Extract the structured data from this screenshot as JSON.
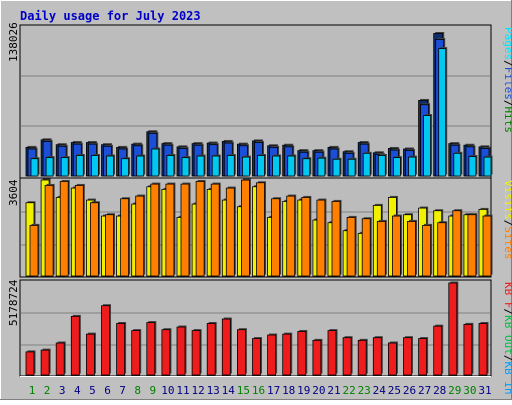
{
  "title": "Daily usage for July 2023",
  "colors": {
    "title": "#0000c8",
    "frame_bg": "#c0c0c0",
    "panel_bg": "#bcbcbc",
    "hits_front": "#008000",
    "hits_edge": "#0c2f6b",
    "hits": "#1c4fd8",
    "files": "#00c8f0",
    "pages": "#00e5ff",
    "visits": "#f0f000",
    "sites": "#ff8000",
    "kbin": "#00a0ff",
    "kbout": "#00c040",
    "kbf": "#ee1c1c",
    "weekend": "#008000",
    "weekday": "#000080"
  },
  "chart_data": [
    {
      "type": "bar",
      "panel": "top",
      "axis_max_label": "138026",
      "ylim": [
        0,
        138026
      ],
      "legend": [
        "Pages",
        "/",
        "Files",
        "/",
        "Hits"
      ],
      "legend_colors": [
        "#00e5ff",
        "#000000",
        "#1c4fd8",
        "#000000",
        "#008000"
      ],
      "categories": [
        "1",
        "2",
        "3",
        "4",
        "5",
        "6",
        "7",
        "8",
        "9",
        "10",
        "11",
        "12",
        "13",
        "14",
        "15",
        "16",
        "17",
        "18",
        "19",
        "20",
        "21",
        "22",
        "23",
        "24",
        "25",
        "26",
        "27",
        "28",
        "29",
        "30",
        "31"
      ],
      "series": [
        {
          "name": "Hits",
          "values": [
            26500,
            33500,
            29000,
            31000,
            31000,
            29000,
            26500,
            29500,
            41000,
            30000,
            27000,
            30000,
            30500,
            32000,
            29500,
            32500,
            28000,
            28500,
            23500,
            23500,
            26500,
            22500,
            31000,
            21500,
            25500,
            25000,
            70000,
            132000,
            30000,
            28500,
            27000
          ]
        },
        {
          "name": "Files",
          "values": [
            25000,
            32000,
            27500,
            29500,
            29500,
            27500,
            25000,
            28000,
            39500,
            28500,
            25500,
            28500,
            29000,
            30500,
            28000,
            31000,
            26500,
            27000,
            22000,
            22000,
            25000,
            21000,
            29500,
            20000,
            24000,
            23500,
            66000,
            126500,
            28500,
            27000,
            25500
          ]
        },
        {
          "name": "Pages",
          "values": [
            16000,
            17000,
            17000,
            19000,
            19000,
            18500,
            16000,
            18500,
            25000,
            19000,
            17000,
            18500,
            18500,
            19000,
            17500,
            19000,
            18500,
            18500,
            16000,
            16500,
            15500,
            15500,
            21000,
            19000,
            17000,
            17500,
            56000,
            118000,
            21000,
            18000,
            17500
          ]
        }
      ]
    },
    {
      "type": "bar",
      "panel": "middle",
      "axis_max_label": "3604",
      "ylim": [
        0,
        3604
      ],
      "legend": [
        "Visits",
        "/",
        "Sites"
      ],
      "legend_colors": [
        "#f0f000",
        "#000000",
        "#ff8000"
      ],
      "categories": [
        "1",
        "2",
        "3",
        "4",
        "5",
        "6",
        "7",
        "8",
        "9",
        "10",
        "11",
        "12",
        "13",
        "14",
        "15",
        "16",
        "17",
        "18",
        "19",
        "20",
        "21",
        "22",
        "23",
        "24",
        "25",
        "26",
        "27",
        "28",
        "29",
        "30",
        "31"
      ],
      "series": [
        {
          "name": "Visits",
          "values": [
            2750,
            3604,
            2950,
            3300,
            2850,
            2250,
            2250,
            2700,
            3350,
            3250,
            2200,
            2700,
            3250,
            2850,
            2600,
            3350,
            2200,
            2800,
            2850,
            2100,
            2000,
            1700,
            1600,
            2650,
            2950,
            2300,
            2550,
            2450,
            2250,
            2300,
            2500
          ]
        },
        {
          "name": "Sites",
          "values": [
            1900,
            3400,
            3550,
            3400,
            2750,
            2300,
            2900,
            3000,
            3450,
            3450,
            3450,
            3550,
            3450,
            3300,
            3600,
            3500,
            2900,
            3000,
            2950,
            2850,
            2800,
            2200,
            2150,
            2050,
            2250,
            2050,
            1900,
            2000,
            2450,
            2300,
            2250
          ]
        }
      ]
    },
    {
      "type": "bar",
      "panel": "bottom",
      "axis_max_label": "5178724",
      "ylim": [
        0,
        5178724
      ],
      "legend": [
        "KB F",
        "/",
        "KB Out",
        "/",
        "KB In"
      ],
      "legend_colors": [
        "#ee1c1c",
        "#000000",
        "#00c040",
        "#000000",
        "#00a0ff"
      ],
      "categories": [
        "1",
        "2",
        "3",
        "4",
        "5",
        "6",
        "7",
        "8",
        "9",
        "10",
        "11",
        "12",
        "13",
        "14",
        "15",
        "16",
        "17",
        "18",
        "19",
        "20",
        "21",
        "22",
        "23",
        "24",
        "25",
        "26",
        "27",
        "28",
        "29",
        "30",
        "31"
      ],
      "series": [
        {
          "name": "KB F",
          "values": [
            1300000,
            1400000,
            1800000,
            3300000,
            2300000,
            3900000,
            2900000,
            2500000,
            2950000,
            2550000,
            2700000,
            2500000,
            2900000,
            3150000,
            2550000,
            2050000,
            2250000,
            2300000,
            2450000,
            1950000,
            2500000,
            2100000,
            1950000,
            2100000,
            1800000,
            2100000,
            2050000,
            2750000,
            5178724,
            2850000,
            2900000
          ]
        }
      ]
    }
  ],
  "x_labels": [
    "1",
    "2",
    "3",
    "4",
    "5",
    "6",
    "7",
    "8",
    "9",
    "10",
    "11",
    "12",
    "13",
    "14",
    "15",
    "16",
    "17",
    "18",
    "19",
    "20",
    "21",
    "22",
    "23",
    "24",
    "25",
    "26",
    "27",
    "28",
    "29",
    "30",
    "31"
  ],
  "weekend_days": [
    1,
    2,
    8,
    9,
    15,
    16,
    22,
    23,
    29,
    30
  ]
}
